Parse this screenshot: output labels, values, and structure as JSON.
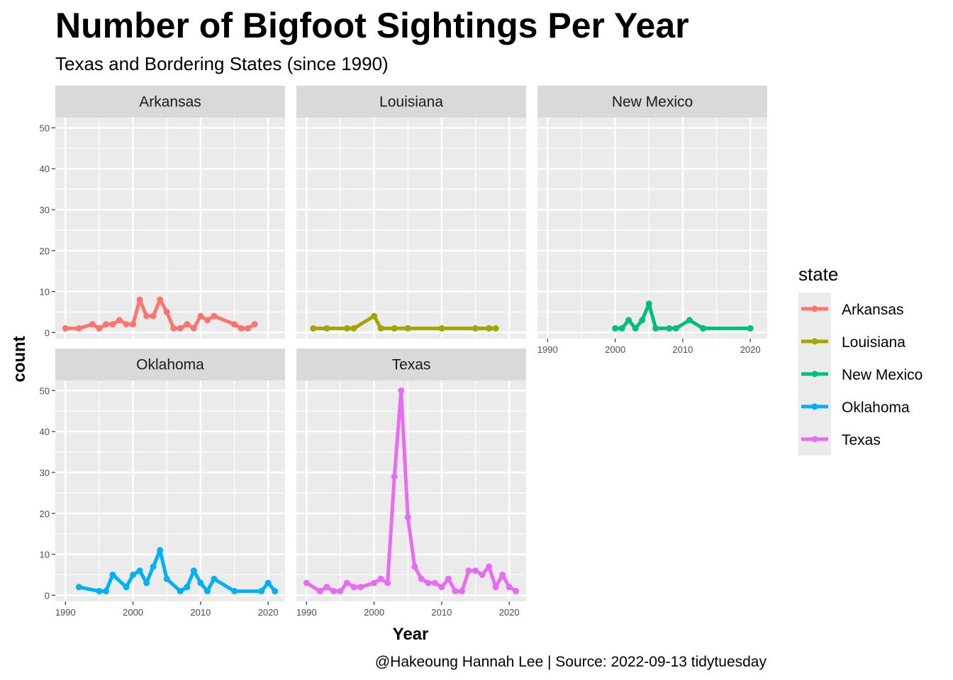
{
  "chart_data": {
    "type": "line",
    "title": "Number of Bigfoot Sightings Per Year",
    "subtitle": "Texas and Bordering States (since 1990)",
    "xlabel": "Year",
    "ylabel": "count",
    "caption": "@Hakeoung Hannah Lee | Source: 2022-09-13 tidytuesday",
    "xlim": [
      1988.5,
      2022.5
    ],
    "ylim": [
      -1.5,
      52.5
    ],
    "x_ticks": [
      1990,
      2000,
      2010,
      2020
    ],
    "y_ticks": [
      0,
      10,
      20,
      30,
      40,
      50
    ],
    "legend": {
      "title": "state",
      "position": "right"
    },
    "grid": true,
    "series": [
      {
        "name": "Arkansas",
        "color": "#F8766D",
        "x": [
          1990,
          1992,
          1994,
          1995,
          1996,
          1997,
          1998,
          1999,
          2000,
          2001,
          2002,
          2003,
          2004,
          2005,
          2006,
          2007,
          2008,
          2009,
          2010,
          2011,
          2012,
          2015,
          2016,
          2017,
          2018
        ],
        "values": [
          1,
          1,
          2,
          1,
          2,
          2,
          3,
          2,
          2,
          8,
          4,
          4,
          8,
          5,
          1,
          1,
          2,
          1,
          4,
          3,
          4,
          2,
          1,
          1,
          2
        ]
      },
      {
        "name": "Louisiana",
        "color": "#A3A500",
        "x": [
          1991,
          1993,
          1996,
          1997,
          2000,
          2001,
          2003,
          2005,
          2010,
          2015,
          2017,
          2018
        ],
        "values": [
          1,
          1,
          1,
          1,
          4,
          1,
          1,
          1,
          1,
          1,
          1,
          1
        ]
      },
      {
        "name": "New Mexico",
        "color": "#00BF7D",
        "x": [
          2000,
          2001,
          2002,
          2003,
          2004,
          2005,
          2006,
          2008,
          2009,
          2011,
          2013,
          2020
        ],
        "values": [
          1,
          1,
          3,
          1,
          3,
          7,
          1,
          1,
          1,
          3,
          1,
          1
        ]
      },
      {
        "name": "Oklahoma",
        "color": "#00B0F6",
        "x": [
          1992,
          1995,
          1996,
          1997,
          1999,
          2000,
          2001,
          2002,
          2003,
          2004,
          2005,
          2007,
          2008,
          2009,
          2010,
          2011,
          2012,
          2015,
          2019,
          2020,
          2021
        ],
        "values": [
          2,
          1,
          1,
          5,
          2,
          5,
          6,
          3,
          7,
          11,
          4,
          1,
          2,
          6,
          3,
          1,
          4,
          1,
          1,
          3,
          1
        ]
      },
      {
        "name": "Texas",
        "color": "#E76BF3",
        "x": [
          1990,
          1992,
          1993,
          1994,
          1995,
          1996,
          1997,
          1998,
          2000,
          2001,
          2002,
          2003,
          2004,
          2005,
          2006,
          2007,
          2008,
          2009,
          2010,
          2011,
          2012,
          2013,
          2014,
          2015,
          2016,
          2017,
          2018,
          2019,
          2020,
          2021
        ],
        "values": [
          3,
          1,
          2,
          1,
          1,
          3,
          2,
          2,
          3,
          4,
          3,
          29,
          50,
          19,
          7,
          4,
          3,
          3,
          2,
          4,
          1,
          1,
          6,
          6,
          5,
          7,
          2,
          5,
          2,
          1
        ]
      }
    ]
  }
}
